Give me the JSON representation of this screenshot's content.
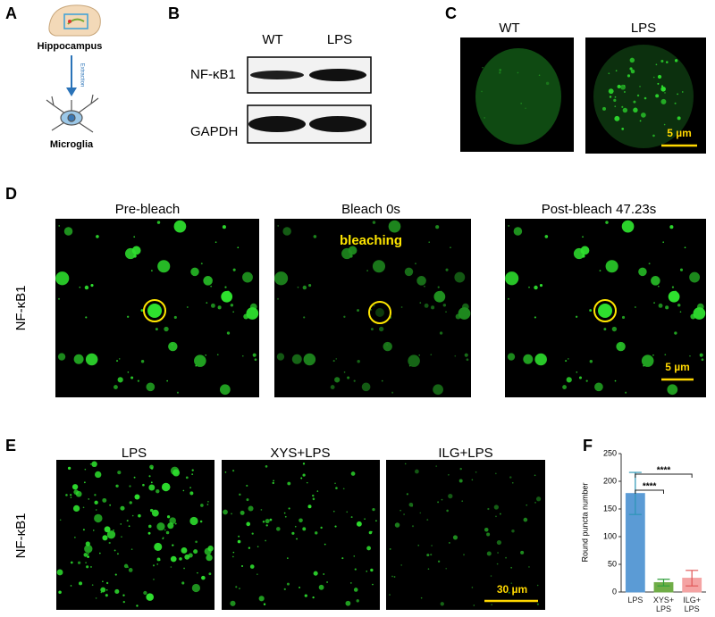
{
  "panels": {
    "A": {
      "label": "A",
      "hippocampus": "Hippocampus",
      "extraction": "Extraction",
      "microglia": "Microglia"
    },
    "B": {
      "label": "B",
      "columns": [
        "WT",
        "LPS"
      ],
      "rows": [
        "NF-κB1",
        "GAPDH"
      ]
    },
    "C": {
      "label": "C",
      "titles": [
        "WT",
        "LPS"
      ],
      "scale_bar": "5 µm"
    },
    "D": {
      "label": "D",
      "titles": [
        "Pre-bleach",
        "Bleach 0s",
        "Post-bleach   47.23s"
      ],
      "annotation": "bleaching",
      "row_label": "NF-κB1",
      "scale_bar": "5 µm"
    },
    "E": {
      "label": "E",
      "titles": [
        "LPS",
        "XYS+LPS",
        "ILG+LPS"
      ],
      "row_label": "NF-κB1",
      "scale_bar": "30 µm"
    },
    "F": {
      "label": "F"
    }
  },
  "chart_data": {
    "type": "bar",
    "ylabel": "Round puncta number",
    "categories": [
      "LPS",
      "XYS+\nLPS",
      "ILG+\nLPS"
    ],
    "values": [
      178,
      17,
      25
    ],
    "errors": [
      38,
      6,
      14
    ],
    "colors": [
      "#5b9bd5",
      "#70ad47",
      "#f4a3a3"
    ],
    "ylim": [
      0,
      250
    ],
    "yticks": [
      0,
      50,
      100,
      150,
      200,
      250
    ],
    "significance": [
      "****",
      "****"
    ]
  }
}
